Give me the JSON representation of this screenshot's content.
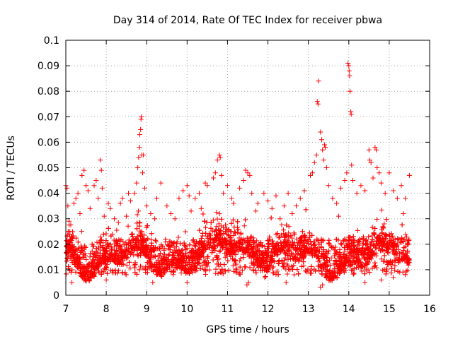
{
  "chart_data": {
    "type": "scatter",
    "title": "Day 314 of 2014, Rate Of TEC Index for receiver pbwa",
    "xlabel": "GPS time / hours",
    "ylabel": "ROTI / TECUs",
    "xlim": [
      7,
      16
    ],
    "ylim": [
      0,
      0.1
    ],
    "xticks": [
      7,
      8,
      9,
      10,
      11,
      12,
      13,
      14,
      15,
      16
    ],
    "xtick_labels": [
      "7",
      "8",
      "9",
      "10",
      "11",
      "12",
      "13",
      "14",
      "15",
      "16"
    ],
    "yticks": [
      0,
      0.01,
      0.02,
      0.03,
      0.04,
      0.05,
      0.06,
      0.07,
      0.08,
      0.09,
      0.1
    ],
    "ytick_labels": [
      "0",
      "0.01",
      "0.02",
      "0.03",
      "0.04",
      "0.05",
      "0.06",
      "0.07",
      "0.08",
      "0.09",
      "0.1"
    ],
    "grid": true,
    "marker": "plus",
    "color": "#ff0000",
    "x_data_range": [
      7.0,
      15.5
    ],
    "series_points": [
      [
        7.0,
        0.043
      ],
      [
        7.03,
        0.042
      ],
      [
        7.05,
        0.035
      ],
      [
        7.08,
        0.029
      ],
      [
        7.1,
        0.025
      ],
      [
        7.12,
        0.022
      ],
      [
        7.2,
        0.036
      ],
      [
        7.25,
        0.038
      ],
      [
        7.3,
        0.04
      ],
      [
        7.35,
        0.032
      ],
      [
        7.4,
        0.047
      ],
      [
        7.45,
        0.049
      ],
      [
        7.5,
        0.043
      ],
      [
        7.55,
        0.041
      ],
      [
        7.6,
        0.034
      ],
      [
        7.7,
        0.043
      ],
      [
        7.75,
        0.045
      ],
      [
        7.8,
        0.038
      ],
      [
        7.85,
        0.053
      ],
      [
        7.88,
        0.049
      ],
      [
        7.9,
        0.042
      ],
      [
        7.95,
        0.031
      ],
      [
        8.05,
        0.036
      ],
      [
        8.1,
        0.034
      ],
      [
        8.2,
        0.03
      ],
      [
        8.35,
        0.036
      ],
      [
        8.4,
        0.038
      ],
      [
        8.5,
        0.031
      ],
      [
        8.55,
        0.04
      ],
      [
        8.6,
        0.037
      ],
      [
        8.7,
        0.04
      ],
      [
        8.75,
        0.044
      ],
      [
        8.78,
        0.05
      ],
      [
        8.8,
        0.054
      ],
      [
        8.82,
        0.058
      ],
      [
        8.83,
        0.063
      ],
      [
        8.85,
        0.065
      ],
      [
        8.86,
        0.069
      ],
      [
        8.87,
        0.07
      ],
      [
        8.88,
        0.055
      ],
      [
        8.9,
        0.048
      ],
      [
        8.92,
        0.055
      ],
      [
        8.95,
        0.042
      ],
      [
        9.0,
        0.035
      ],
      [
        9.1,
        0.032
      ],
      [
        9.2,
        0.03
      ],
      [
        9.35,
        0.044
      ],
      [
        9.5,
        0.035
      ],
      [
        9.7,
        0.03
      ],
      [
        9.8,
        0.038
      ],
      [
        9.9,
        0.041
      ],
      [
        10.0,
        0.043
      ],
      [
        10.05,
        0.039
      ],
      [
        10.1,
        0.033
      ],
      [
        10.2,
        0.038
      ],
      [
        10.3,
        0.04
      ],
      [
        10.45,
        0.044
      ],
      [
        10.5,
        0.043
      ],
      [
        10.65,
        0.046
      ],
      [
        10.7,
        0.048
      ],
      [
        10.75,
        0.053
      ],
      [
        10.8,
        0.055
      ],
      [
        10.82,
        0.054
      ],
      [
        10.85,
        0.047
      ],
      [
        10.9,
        0.04
      ],
      [
        11.0,
        0.043
      ],
      [
        11.1,
        0.038
      ],
      [
        11.15,
        0.036
      ],
      [
        11.3,
        0.042
      ],
      [
        11.4,
        0.045
      ],
      [
        11.45,
        0.049
      ],
      [
        11.5,
        0.048
      ],
      [
        11.55,
        0.047
      ],
      [
        11.6,
        0.04
      ],
      [
        11.75,
        0.036
      ],
      [
        11.9,
        0.04
      ],
      [
        12.0,
        0.037
      ],
      [
        12.2,
        0.039
      ],
      [
        12.4,
        0.035
      ],
      [
        12.5,
        0.04
      ],
      [
        12.6,
        0.032
      ],
      [
        12.8,
        0.038
      ],
      [
        12.9,
        0.041
      ],
      [
        13.05,
        0.047
      ],
      [
        13.1,
        0.048
      ],
      [
        13.15,
        0.052
      ],
      [
        13.2,
        0.055
      ],
      [
        13.22,
        0.076
      ],
      [
        13.24,
        0.075
      ],
      [
        13.25,
        0.084
      ],
      [
        13.3,
        0.064
      ],
      [
        13.33,
        0.061
      ],
      [
        13.35,
        0.057
      ],
      [
        13.38,
        0.053
      ],
      [
        13.4,
        0.059
      ],
      [
        13.42,
        0.058
      ],
      [
        13.45,
        0.05
      ],
      [
        13.5,
        0.043
      ],
      [
        13.6,
        0.038
      ],
      [
        13.7,
        0.036
      ],
      [
        13.8,
        0.042
      ],
      [
        13.9,
        0.045
      ],
      [
        13.95,
        0.048
      ],
      [
        13.98,
        0.091
      ],
      [
        14.0,
        0.09
      ],
      [
        14.01,
        0.088
      ],
      [
        14.02,
        0.086
      ],
      [
        14.03,
        0.08
      ],
      [
        14.05,
        0.072
      ],
      [
        14.06,
        0.071
      ],
      [
        14.07,
        0.051
      ],
      [
        14.1,
        0.045
      ],
      [
        14.2,
        0.04
      ],
      [
        14.3,
        0.043
      ],
      [
        14.4,
        0.041
      ],
      [
        14.5,
        0.057
      ],
      [
        14.52,
        0.053
      ],
      [
        14.55,
        0.052
      ],
      [
        14.6,
        0.046
      ],
      [
        14.65,
        0.058
      ],
      [
        14.68,
        0.057
      ],
      [
        14.7,
        0.05
      ],
      [
        14.75,
        0.048
      ],
      [
        14.8,
        0.044
      ],
      [
        14.9,
        0.04
      ],
      [
        15.0,
        0.048
      ],
      [
        15.1,
        0.041
      ],
      [
        15.2,
        0.038
      ],
      [
        15.3,
        0.043
      ],
      [
        15.4,
        0.038
      ],
      [
        15.5,
        0.047
      ],
      [
        9.25,
        0.038
      ],
      [
        9.6,
        0.032
      ],
      [
        10.35,
        0.034
      ],
      [
        11.7,
        0.033
      ],
      [
        12.1,
        0.034
      ],
      [
        12.3,
        0.03
      ],
      [
        12.7,
        0.035
      ],
      [
        13.75,
        0.031
      ],
      [
        15.35,
        0.032
      ],
      [
        7.15,
        0.005
      ],
      [
        8.0,
        0.006
      ],
      [
        9.15,
        0.005
      ],
      [
        10.0,
        0.005
      ],
      [
        11.48,
        0.004
      ],
      [
        11.52,
        0.005
      ],
      [
        12.45,
        0.005
      ],
      [
        13.3,
        0.003
      ],
      [
        13.35,
        0.004
      ],
      [
        14.4,
        0.005
      ],
      [
        14.8,
        0.006
      ],
      [
        15.1,
        0.007
      ]
    ]
  }
}
